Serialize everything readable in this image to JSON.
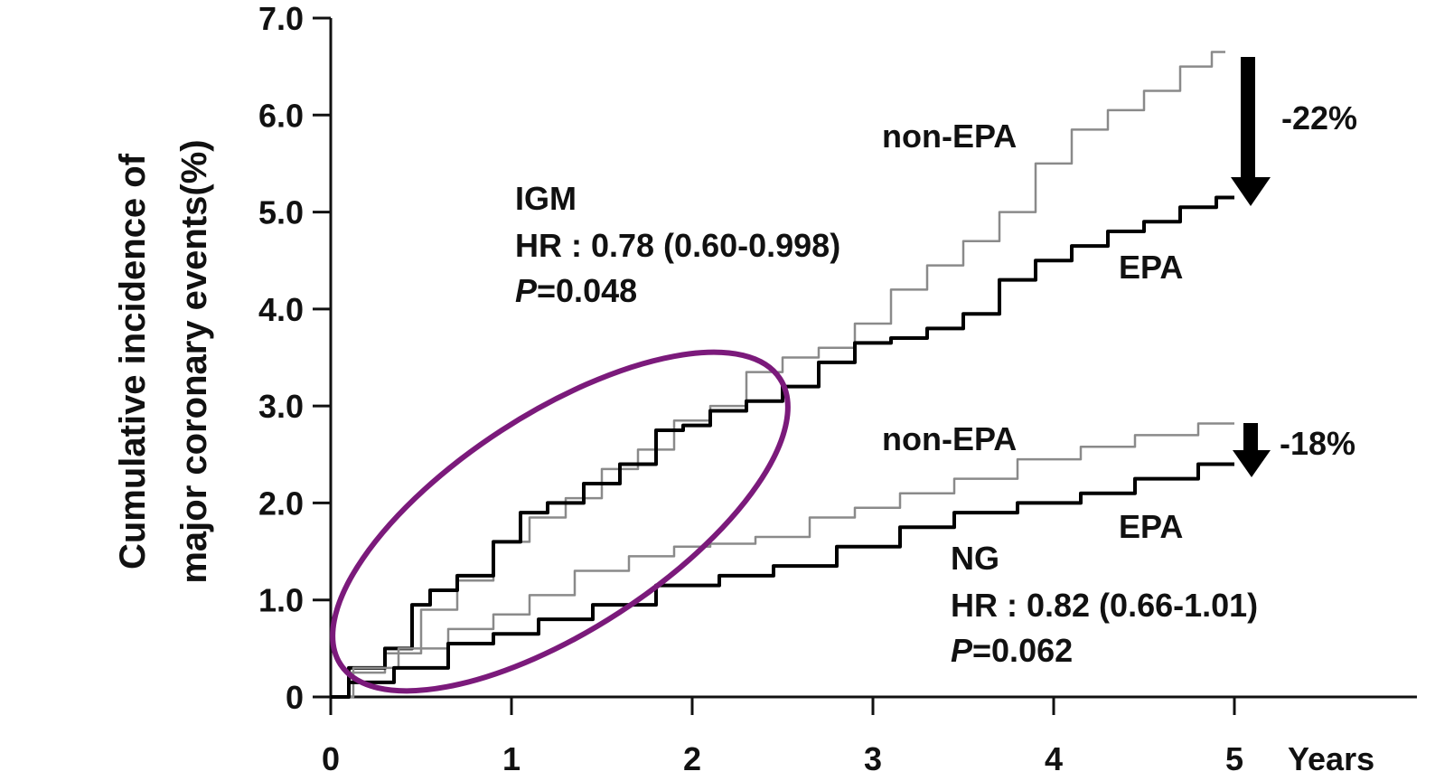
{
  "chart_data": {
    "type": "line",
    "ylabel_line1": "Cumulative incidence of",
    "ylabel_line2": "major coronary events(%)",
    "xlabel": "Years",
    "x_ticks": [
      "0",
      "1",
      "2",
      "3",
      "4",
      "5"
    ],
    "y_ticks": [
      "0",
      "1.0",
      "2.0",
      "3.0",
      "4.0",
      "5.0",
      "6.0",
      "7.0"
    ],
    "xlim": [
      0,
      5
    ],
    "ylim": [
      0,
      7
    ],
    "series": [
      {
        "group": "IGM",
        "label": "non-EPA",
        "color": "#8a8a8a",
        "x": [
          0,
          0.2,
          0.4,
          0.6,
          0.8,
          1.0,
          1.2,
          1.4,
          1.6,
          1.8,
          2.0,
          2.2,
          2.4,
          2.6,
          2.8,
          3.0,
          3.2,
          3.4,
          3.6,
          3.8,
          4.0,
          4.2,
          4.4,
          4.6,
          4.8,
          4.95
        ],
        "y": [
          0,
          0.25,
          0.45,
          0.9,
          1.2,
          1.6,
          1.85,
          2.05,
          2.35,
          2.55,
          2.85,
          3.0,
          3.35,
          3.5,
          3.6,
          3.85,
          4.2,
          4.45,
          4.7,
          5.0,
          5.5,
          5.85,
          6.05,
          6.25,
          6.5,
          6.65
        ]
      },
      {
        "group": "IGM",
        "label": "EPA",
        "color": "#000000",
        "x": [
          0,
          0.2,
          0.4,
          0.5,
          0.6,
          0.8,
          1.0,
          1.1,
          1.3,
          1.5,
          1.7,
          1.9,
          2.0,
          2.2,
          2.4,
          2.6,
          2.8,
          3.0,
          3.2,
          3.4,
          3.6,
          3.8,
          4.0,
          4.2,
          4.4,
          4.6,
          4.8,
          5.0
        ],
        "y": [
          0,
          0.3,
          0.5,
          0.95,
          1.1,
          1.25,
          1.6,
          1.9,
          2.0,
          2.2,
          2.4,
          2.75,
          2.8,
          2.95,
          3.05,
          3.2,
          3.45,
          3.65,
          3.7,
          3.8,
          3.95,
          4.3,
          4.5,
          4.65,
          4.8,
          4.9,
          5.05,
          5.15
        ]
      },
      {
        "group": "NG",
        "label": "non-EPA",
        "color": "#8a8a8a",
        "x": [
          0,
          0.25,
          0.5,
          0.8,
          1.0,
          1.2,
          1.5,
          1.8,
          2.0,
          2.2,
          2.5,
          2.8,
          3.0,
          3.3,
          3.6,
          4.0,
          4.3,
          4.6,
          5.0
        ],
        "y": [
          0,
          0.3,
          0.5,
          0.7,
          0.85,
          1.05,
          1.3,
          1.45,
          1.55,
          1.58,
          1.65,
          1.85,
          1.95,
          2.1,
          2.25,
          2.45,
          2.58,
          2.7,
          2.82
        ]
      },
      {
        "group": "NG",
        "label": "EPA",
        "color": "#000000",
        "x": [
          0,
          0.2,
          0.5,
          0.8,
          1.0,
          1.3,
          1.6,
          2.0,
          2.3,
          2.6,
          3.0,
          3.3,
          3.6,
          4.0,
          4.3,
          4.6,
          5.0
        ],
        "y": [
          0,
          0.15,
          0.3,
          0.55,
          0.65,
          0.8,
          0.95,
          1.15,
          1.25,
          1.35,
          1.55,
          1.75,
          1.9,
          2.0,
          2.1,
          2.25,
          2.4
        ]
      }
    ],
    "annotations": {
      "igm_group": "IGM",
      "igm_hr": "HR : 0.78 (0.60-0.998)",
      "igm_p_label": "P",
      "igm_p_value": "=0.048",
      "igm_nonepa": "non-EPA",
      "igm_epa": "EPA",
      "igm_reduction": "-22%",
      "ng_group": "NG",
      "ng_hr": "HR : 0.82 (0.66-1.01)",
      "ng_p_label": "P",
      "ng_p_value": "=0.062",
      "ng_nonepa": "non-EPA",
      "ng_epa": "EPA",
      "ng_reduction": "-18%"
    },
    "highlight_color": "#7b1a7b",
    "grid": false
  }
}
